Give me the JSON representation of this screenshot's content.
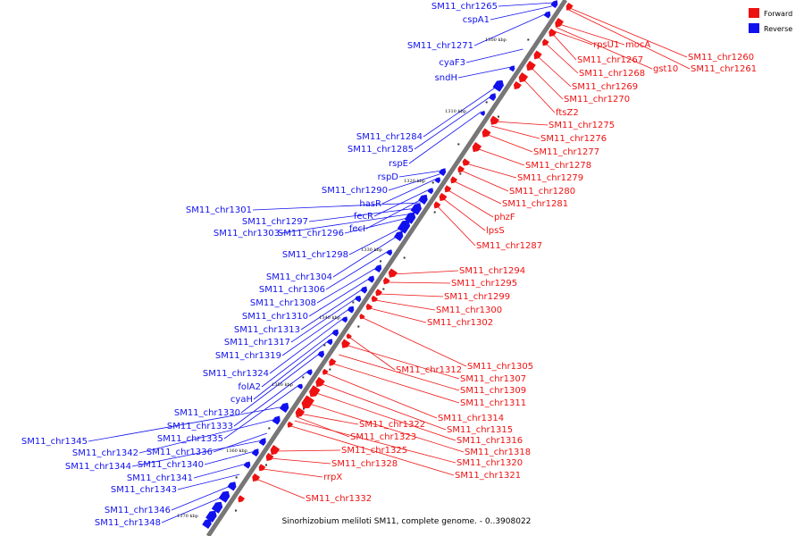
{
  "caption": "Sinorhizobium meliloti SM11, complete genome. - 0..3908022",
  "legend": [
    {
      "label": "Forward",
      "color": "#ee1111"
    },
    {
      "label": "Reverse",
      "color": "#1111ee"
    }
  ],
  "colors": {
    "forward": "#ee1111",
    "reverse": "#1111ee",
    "backbone": "#777777"
  },
  "ticks": [
    "1300 kbp",
    "1310 kbp",
    "1320 kbp",
    "1330 kbp",
    "1340 kbp",
    "1350 kbp",
    "1360 kbp",
    "1370 kbp"
  ],
  "forward_labels": [
    "SM11_chr1260",
    "SM11_chr1261",
    "mocA",
    "gst10",
    "rpsU1",
    "SM11_chr1267",
    "SM11_chr1268",
    "SM11_chr1269",
    "SM11_chr1270",
    "ftsZ2",
    "SM11_chr1275",
    "SM11_chr1276",
    "SM11_chr1277",
    "SM11_chr1278",
    "SM11_chr1279",
    "SM11_chr1280",
    "SM11_chr1281",
    "phzF",
    "lpsS",
    "SM11_chr1287",
    "SM11_chr1294",
    "SM11_chr1295",
    "SM11_chr1299",
    "SM11_chr1300",
    "SM11_chr1302",
    "SM11_chr1305",
    "SM11_chr1312",
    "SM11_chr1307",
    "SM11_chr1309",
    "SM11_chr1311",
    "SM11_chr1314",
    "SM11_chr1315",
    "SM11_chr1316",
    "SM11_chr1318",
    "SM11_chr1322",
    "SM11_chr1323",
    "SM11_chr1320",
    "SM11_chr1321",
    "SM11_chr1325",
    "SM11_chr1328",
    "rrpX",
    "SM11_chr1332"
  ],
  "reverse_labels": [
    "SM11_chr1265",
    "cspA1",
    "SM11_chr1271",
    "cyaF3",
    "sndH",
    "SM11_chr1284",
    "SM11_chr1285",
    "rspE",
    "rspD",
    "SM11_chr1290",
    "hasR",
    "fecR",
    "fecI",
    "SM11_chr1301",
    "SM11_chr1297",
    "SM11_chr1303",
    "SM11_chr1296",
    "SM11_chr1298",
    "SM11_chr1304",
    "SM11_chr1306",
    "SM11_chr1308",
    "SM11_chr1310",
    "SM11_chr1313",
    "SM11_chr1317",
    "SM11_chr1319",
    "SM11_chr1324",
    "folA2",
    "cyaH",
    "SM11_chr1330",
    "SM11_chr1333",
    "SM11_chr1335",
    "SM11_chr1345",
    "SM11_chr1342",
    "SM11_chr1336",
    "SM11_chr1344",
    "SM11_chr1340",
    "SM11_chr1341",
    "SM11_chr1343",
    "SM11_chr1346",
    "SM11_chr1348"
  ]
}
